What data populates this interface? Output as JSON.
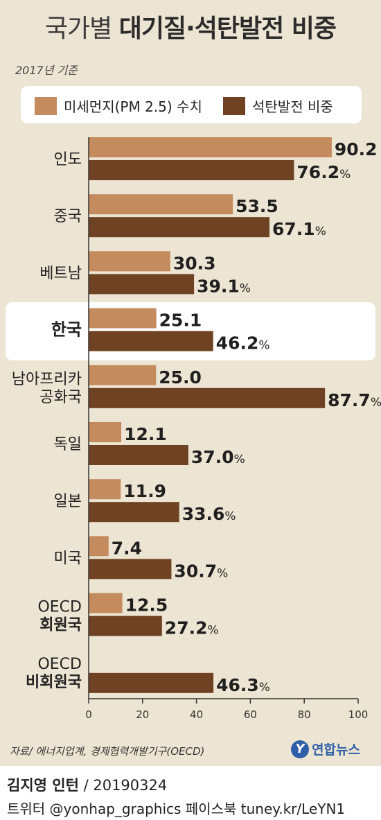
{
  "header": {
    "title_light": "국가별 ",
    "title_bold": "대기질·석탄발전 비중",
    "subtitle": "2017년 기준"
  },
  "colors": {
    "background": "#ede5d3",
    "pm25": "#c48c5e",
    "coal": "#6e4222",
    "highlight": "#ffffff"
  },
  "chart_data": {
    "type": "bar",
    "orientation": "horizontal",
    "title": "국가별 대기질·석탄발전 비중",
    "subtitle": "2017년 기준",
    "categories": [
      [
        "인도"
      ],
      [
        "중국"
      ],
      [
        "베트남"
      ],
      [
        "한국"
      ],
      [
        "남아프리카",
        "공화국"
      ],
      [
        "독일"
      ],
      [
        "일본"
      ],
      [
        "미국"
      ],
      [
        "OECD",
        "회원국"
      ],
      [
        "OECD",
        "비회원국"
      ]
    ],
    "highlighted_category": 3,
    "series": [
      {
        "name": "미세먼지(PM 2.5) 수치",
        "values": [
          90.2,
          53.5,
          30.3,
          25.1,
          25.0,
          12.1,
          11.9,
          7.4,
          12.5,
          null
        ],
        "labels": [
          "90.2",
          "53.5",
          "30.3",
          "25.1",
          "25.0",
          "12.1",
          "11.9",
          "7.4",
          "12.5",
          ""
        ],
        "unit": ""
      },
      {
        "name": "석탄발전 비중",
        "values": [
          76.2,
          67.1,
          39.1,
          46.2,
          87.7,
          37.0,
          33.6,
          30.7,
          27.2,
          46.3
        ],
        "labels": [
          "76.2",
          "67.1",
          "39.1",
          "46.2",
          "87.7",
          "37.0",
          "33.6",
          "30.7",
          "27.2",
          "46.3"
        ],
        "unit": "%"
      }
    ],
    "xlim": [
      0,
      100
    ],
    "xticks": [
      "0",
      "20",
      "40",
      "60",
      "80",
      "100"
    ],
    "grid": false,
    "legend_position": "top"
  },
  "footer": {
    "source": "자료/ 에너지업계, 경제협력개발기구(OECD)",
    "logo_mark": "Y",
    "logo_text": "연합뉴스",
    "author": "김지영 인턴",
    "date": " / 20190324",
    "social": "트위터 @yonhap_graphics  페이스북 tuney.kr/LeYN1"
  }
}
